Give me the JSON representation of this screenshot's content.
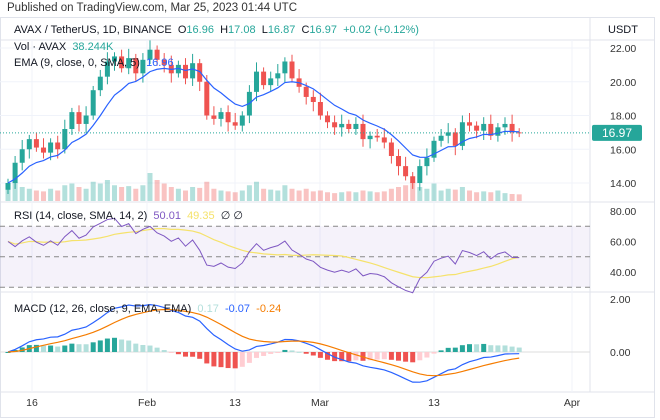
{
  "published": "Published on TradingView.com, Mar 25, 2023 01:44 UTC",
  "legend": {
    "symbol": "AVAX / TetherUS, 1D, BINANCE",
    "o_label": "O",
    "o": "16.96",
    "h_label": "H",
    "h": "17.08",
    "l_label": "L",
    "l": "16.87",
    "c_label": "C",
    "c": "16.97",
    "change": "+0.02 (+0.12%)",
    "vol_label": "Vol · AVAX",
    "vol": "38.244K",
    "ema_label": "EMA (9, close, 0, SMA, 5)",
    "ema": "16.96",
    "rsi_label": "RSI (14, close, SMA, 14, 2)",
    "rsi": "50.01",
    "rsi_ma": "49.35",
    "rsi_na1": "∅",
    "rsi_na2": "∅",
    "macd_label": "MACD (12, 26, close, 9, EMA, EMA)",
    "macd_hist": "0.17",
    "macd": "-0.07",
    "macd_signal": "-0.24"
  },
  "currency": "USDT",
  "last_price": "16.97",
  "colors": {
    "up": "#26a69a",
    "down": "#ef5350",
    "ema": "#2962ff",
    "rsi": "#7e57c2",
    "rsi_ma": "#f5e26b",
    "macd": "#2962ff",
    "signal": "#f57c00"
  },
  "chart_data": {
    "type": "candlestick",
    "x_ticks": [
      "16",
      "Feb",
      "13",
      "Mar",
      "13",
      "Apr"
    ],
    "price_ticks": [
      "22.00",
      "20.00",
      "18.00",
      "16.00",
      "14.00"
    ],
    "rsi_ticks": [
      "80.00",
      "60.00",
      "40.00"
    ],
    "macd_ticks": [
      "2.00",
      "0.00"
    ],
    "price_ylim": [
      13,
      23
    ],
    "rsi_bands": [
      70,
      50,
      30
    ],
    "closes": [
      14.0,
      15.2,
      16.0,
      16.6,
      16.1,
      15.8,
      16.4,
      16.0,
      17.2,
      18.2,
      17.5,
      18.0,
      19.5,
      20.3,
      21.2,
      21.5,
      20.8,
      21.4,
      20.5,
      21.3,
      21.9,
      21.3,
      21.0,
      20.5,
      21.0,
      20.2,
      21.1,
      20.0,
      18.0,
      17.8,
      18.2,
      17.6,
      17.4,
      18.0,
      19.4,
      20.6,
      19.8,
      20.2,
      20.5,
      21.2,
      20.2,
      19.7,
      19.1,
      18.8,
      18.0,
      17.6,
      17.3,
      17.5,
      17.2,
      17.5,
      16.6,
      16.8,
      16.7,
      16.4,
      15.6,
      15.0,
      14.4,
      14.0,
      15.0,
      15.5,
      16.5,
      16.8,
      17.0,
      16.2,
      17.6,
      17.4,
      17.1,
      17.5,
      16.8,
      17.3,
      17.5,
      17.0,
      16.97
    ],
    "volumes_k": [
      90,
      110,
      80,
      70,
      60,
      55,
      70,
      60,
      90,
      100,
      80,
      70,
      110,
      100,
      120,
      90,
      80,
      85,
      70,
      90,
      160,
      120,
      100,
      80,
      70,
      60,
      80,
      75,
      110,
      70,
      60,
      55,
      50,
      60,
      90,
      110,
      70,
      65,
      60,
      90,
      70,
      60,
      70,
      55,
      60,
      50,
      45,
      50,
      55,
      50,
      60,
      55,
      50,
      55,
      70,
      80,
      90,
      110,
      80,
      70,
      100,
      60,
      70,
      65,
      80,
      60,
      50,
      55,
      50,
      60,
      45,
      40,
      38
    ]
  }
}
